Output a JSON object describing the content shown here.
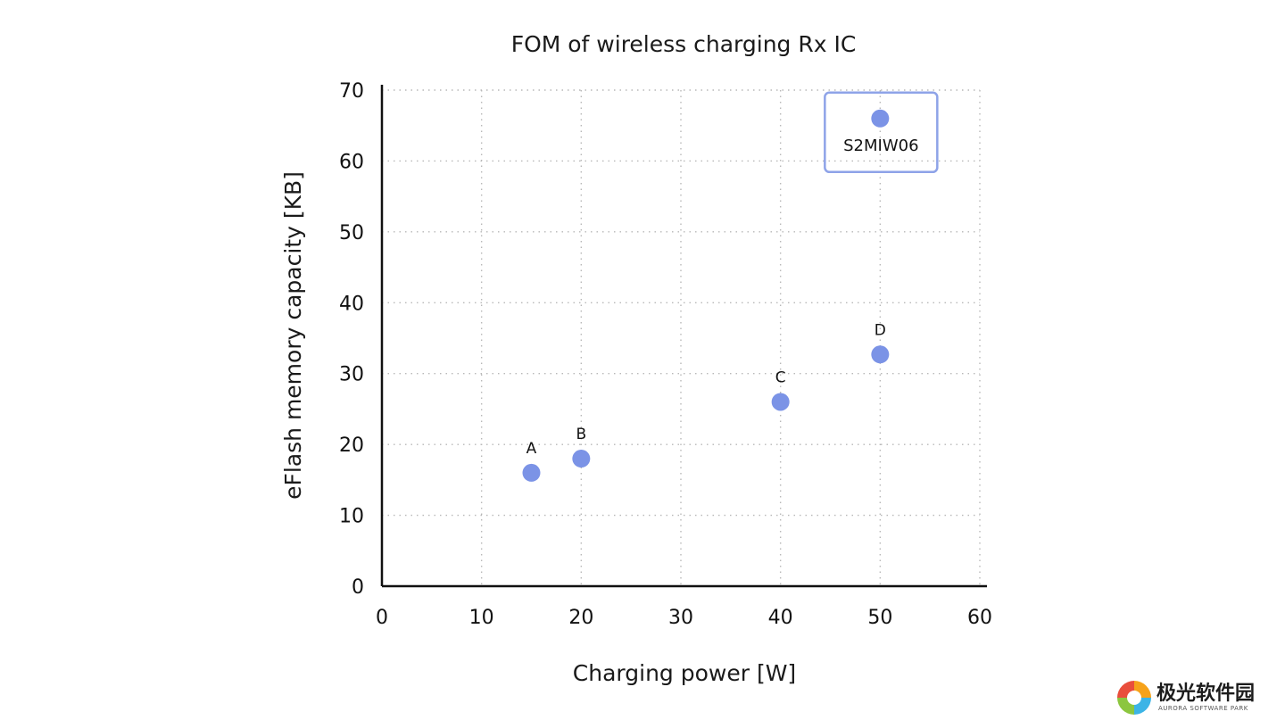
{
  "chart_data": {
    "type": "scatter",
    "title": "FOM of wireless charging Rx IC",
    "xlabel": "Charging power [W]",
    "ylabel": "eFlash memory capacity [KB]",
    "xlim": [
      0,
      60
    ],
    "ylim": [
      0,
      70
    ],
    "xticks": [
      0,
      10,
      20,
      30,
      40,
      50,
      60
    ],
    "yticks": [
      0,
      10,
      20,
      30,
      40,
      50,
      60,
      70
    ],
    "grid": true,
    "points": [
      {
        "label": "A",
        "x": 15,
        "y": 16
      },
      {
        "label": "B",
        "x": 20,
        "y": 18
      },
      {
        "label": "C",
        "x": 40,
        "y": 26
      },
      {
        "label": "D",
        "x": 50,
        "y": 32.7
      }
    ],
    "highlight": {
      "label": "S2MIW06",
      "x": 50,
      "y": 66
    },
    "colors": {
      "point": "#7b93e6",
      "highlight_box": "#8ea3e8",
      "axis": "#111111",
      "grid": "#b8b8b8"
    }
  },
  "watermark": {
    "title": "极光软件园",
    "subtitle": "AURORA SOFTWARE PARK"
  }
}
